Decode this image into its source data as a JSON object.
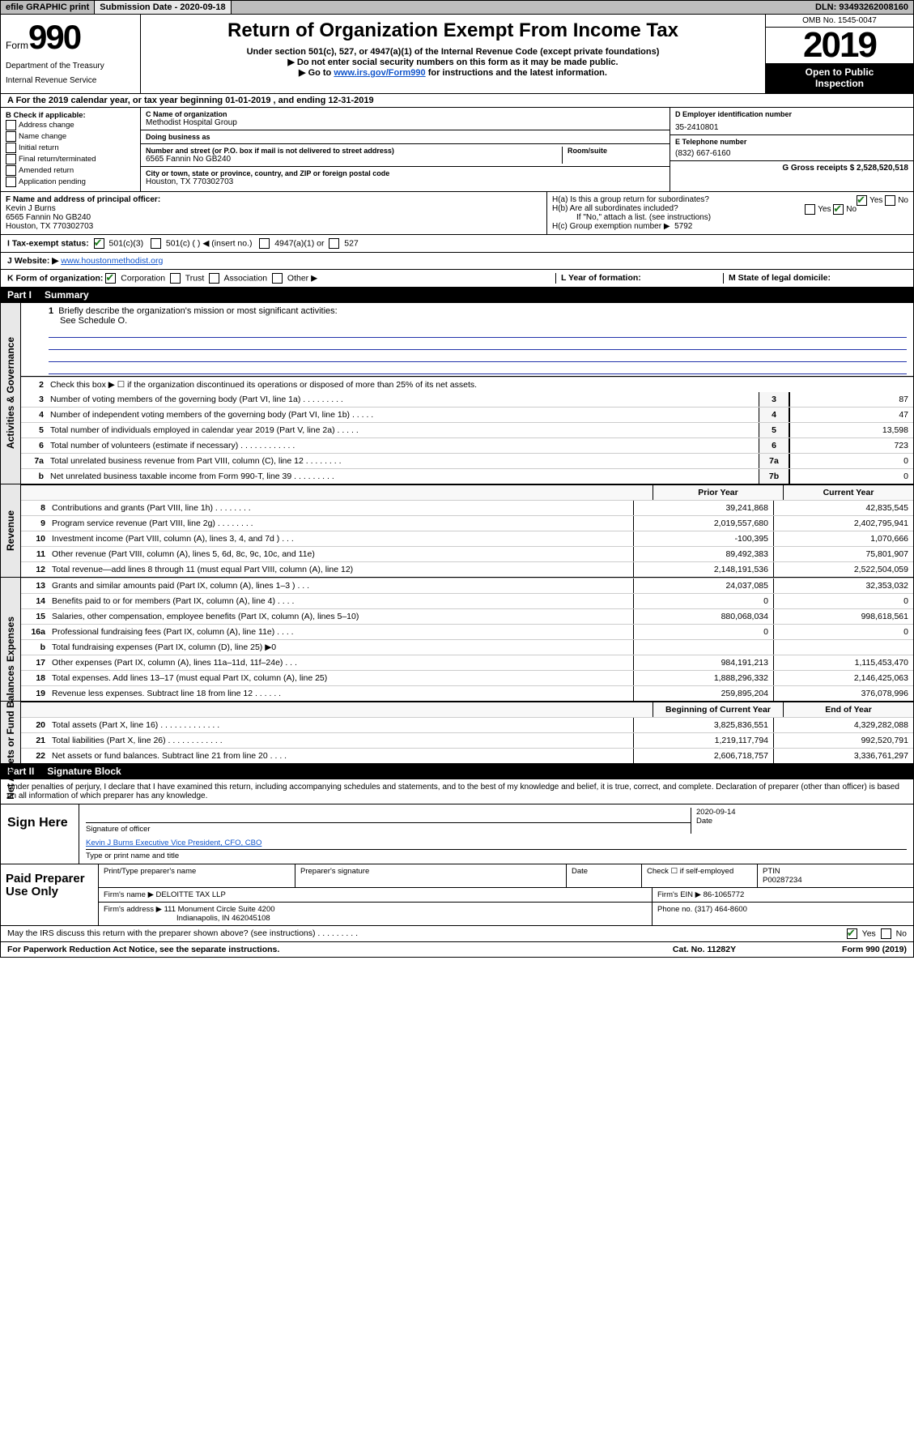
{
  "meta": {
    "efile_label": "efile GRAPHIC print",
    "submission_label": "Submission Date - 2020-09-18",
    "dln_label": "DLN: 93493262008160"
  },
  "header": {
    "form_word": "Form",
    "form_number": "990",
    "title": "Return of Organization Exempt From Income Tax",
    "subtitle": "Under section 501(c), 527, or 4947(a)(1) of the Internal Revenue Code (except private foundations)",
    "warn": "▶ Do not enter social security numbers on this form as it may be made public.",
    "goto_pre": "▶ Go to ",
    "goto_link": "www.irs.gov/Form990",
    "goto_post": " for instructions and the latest information.",
    "dept1": "Department of the Treasury",
    "dept2": "Internal Revenue Service",
    "omb": "OMB No. 1545-0047",
    "year": "2019",
    "open1": "Open to Public",
    "open2": "Inspection"
  },
  "row_a": "A For the 2019 calendar year, or tax year beginning 01-01-2019   , and ending 12-31-2019",
  "col_b": {
    "title": "B Check if applicable:",
    "opts": [
      "Address change",
      "Name change",
      "Initial return",
      "Final return/terminated",
      "Amended return",
      "Application pending"
    ]
  },
  "org": {
    "c_label": "C Name of organization",
    "name": "Methodist Hospital Group",
    "dba_label": "Doing business as",
    "addr_label": "Number and street (or P.O. box if mail is not delivered to street address)",
    "suite_label": "Room/suite",
    "addr": "6565 Fannin No GB240",
    "city_label": "City or town, state or province, country, and ZIP or foreign postal code",
    "city": "Houston, TX  770302703"
  },
  "col_d": {
    "ein_label": "D Employer identification number",
    "ein": "35-2410801",
    "tel_label": "E Telephone number",
    "tel": "(832) 667-6160",
    "gross_label": "G Gross receipts $ 2,528,520,518"
  },
  "below": {
    "f_label": "F  Name and address of principal officer:",
    "officer_name": "Kevin J Burns",
    "officer_addr1": "6565 Fannin No GB240",
    "officer_addr2": "Houston, TX  770302703",
    "ha_label": "H(a)  Is this a group return for subordinates?",
    "hb_label": "H(b)  Are all subordinates included?",
    "hb_note": "If \"No,\" attach a list. (see instructions)",
    "hc_label": "H(c)  Group exemption number ▶",
    "hc_val": "5792",
    "yes": "Yes",
    "no": "No"
  },
  "status": {
    "i_label": "I  Tax-exempt status:",
    "c3": "501(c)(3)",
    "c_other": "501(c) (  ) ◀ (insert no.)",
    "a1": "4947(a)(1) or",
    "s527": "527"
  },
  "website": {
    "j_label": "J  Website: ▶",
    "link": "www.houstonmethodist.org"
  },
  "korg": {
    "k_label": "K Form of organization:",
    "corp": "Corporation",
    "trust": "Trust",
    "assoc": "Association",
    "other": "Other ▶",
    "l_label": "L Year of formation:",
    "m_label": "M State of legal domicile:"
  },
  "part1": {
    "badge": "Part I",
    "title": "Summary",
    "q1": "Briefly describe the organization's mission or most significant activities:",
    "q1a": "See Schedule O.",
    "q2": "Check this box ▶ ☐  if the organization discontinued its operations or disposed of more than 25% of its net assets.",
    "rows_simple": [
      {
        "n": "3",
        "t": "Number of voting members of the governing body (Part VI, line 1a)  .   .   .   .   .   .   .   .   .",
        "box": "3",
        "v": "87"
      },
      {
        "n": "4",
        "t": "Number of independent voting members of the governing body (Part VI, line 1b)  .   .   .   .   .",
        "box": "4",
        "v": "47"
      },
      {
        "n": "5",
        "t": "Total number of individuals employed in calendar year 2019 (Part V, line 2a)  .   .   .   .   .",
        "box": "5",
        "v": "13,598"
      },
      {
        "n": "6",
        "t": "Total number of volunteers (estimate if necessary)  .   .   .   .   .   .   .   .   .   .   .   .",
        "box": "6",
        "v": "723"
      },
      {
        "n": "7a",
        "t": "Total unrelated business revenue from Part VIII, column (C), line 12  .   .   .   .   .   .   .   .",
        "box": "7a",
        "v": "0"
      },
      {
        "n": "b",
        "t": "Net unrelated business taxable income from Form 990-T, line 39  .   .   .   .   .   .   .   .   .",
        "box": "7b",
        "v": "0"
      }
    ],
    "col_prior": "Prior Year",
    "col_current": "Current Year",
    "col_begin": "Beginning of Current Year",
    "col_end": "End of Year"
  },
  "revenue": [
    {
      "n": "8",
      "t": "Contributions and grants (Part VIII, line 1h)  .   .   .   .   .   .   .   .",
      "p": "39,241,868",
      "c": "42,835,545"
    },
    {
      "n": "9",
      "t": "Program service revenue (Part VIII, line 2g)  .   .   .   .   .   .   .   .",
      "p": "2,019,557,680",
      "c": "2,402,795,941"
    },
    {
      "n": "10",
      "t": "Investment income (Part VIII, column (A), lines 3, 4, and 7d )  .   .   .",
      "p": "-100,395",
      "c": "1,070,666"
    },
    {
      "n": "11",
      "t": "Other revenue (Part VIII, column (A), lines 5, 6d, 8c, 9c, 10c, and 11e)",
      "p": "89,492,383",
      "c": "75,801,907"
    },
    {
      "n": "12",
      "t": "Total revenue—add lines 8 through 11 (must equal Part VIII, column (A), line 12)",
      "p": "2,148,191,536",
      "c": "2,522,504,059"
    }
  ],
  "expenses": [
    {
      "n": "13",
      "t": "Grants and similar amounts paid (Part IX, column (A), lines 1–3 )  .   .   .",
      "p": "24,037,085",
      "c": "32,353,032"
    },
    {
      "n": "14",
      "t": "Benefits paid to or for members (Part IX, column (A), line 4)  .   .   .   .",
      "p": "0",
      "c": "0"
    },
    {
      "n": "15",
      "t": "Salaries, other compensation, employee benefits (Part IX, column (A), lines 5–10)",
      "p": "880,068,034",
      "c": "998,618,561"
    },
    {
      "n": "16a",
      "t": "Professional fundraising fees (Part IX, column (A), line 11e)  .   .   .   .",
      "p": "0",
      "c": "0"
    },
    {
      "n": "b",
      "t": "Total fundraising expenses (Part IX, column (D), line 25) ▶0",
      "p": "",
      "c": ""
    },
    {
      "n": "17",
      "t": "Other expenses (Part IX, column (A), lines 11a–11d, 11f–24e)  .   .   .",
      "p": "984,191,213",
      "c": "1,115,453,470"
    },
    {
      "n": "18",
      "t": "Total expenses. Add lines 13–17 (must equal Part IX, column (A), line 25)",
      "p": "1,888,296,332",
      "c": "2,146,425,063"
    },
    {
      "n": "19",
      "t": "Revenue less expenses. Subtract line 18 from line 12  .   .   .   .   .   .",
      "p": "259,895,204",
      "c": "376,078,996"
    }
  ],
  "netassets": [
    {
      "n": "20",
      "t": "Total assets (Part X, line 16)  .   .   .   .   .   .   .   .   .   .   .   .   .",
      "p": "3,825,836,551",
      "c": "4,329,282,088"
    },
    {
      "n": "21",
      "t": "Total liabilities (Part X, line 26)  .   .   .   .   .   .   .   .   .   .   .   .",
      "p": "1,219,117,794",
      "c": "992,520,791"
    },
    {
      "n": "22",
      "t": "Net assets or fund balances. Subtract line 21 from line 20  .   .   .   .",
      "p": "2,606,718,757",
      "c": "3,336,761,297"
    }
  ],
  "vert": {
    "gov": "Activities & Governance",
    "rev": "Revenue",
    "exp": "Expenses",
    "na": "Net Assets or Fund Balances"
  },
  "part2": {
    "badge": "Part II",
    "title": "Signature Block"
  },
  "perjury": "Under penalties of perjury, I declare that I have examined this return, including accompanying schedules and statements, and to the best of my knowledge and belief, it is true, correct, and complete. Declaration of preparer (other than officer) is based on all information of which preparer has any knowledge.",
  "sign": {
    "here": "Sign Here",
    "sig_lbl": "Signature of officer",
    "date_lbl": "Date",
    "date": "2020-09-14",
    "name": "Kevin J Burns  Executive Vice President, CFO, CBO",
    "name_lbl": "Type or print name and title"
  },
  "paid": {
    "title": "Paid Preparer Use Only",
    "h_prep": "Print/Type preparer's name",
    "h_sig": "Preparer's signature",
    "h_date": "Date",
    "h_chk": "Check ☐ if self-employed",
    "h_ptin": "PTIN",
    "ptin": "P00287234",
    "firm_lbl": "Firm's name   ▶",
    "firm": "DELOITTE TAX LLP",
    "ein_lbl": "Firm's EIN ▶",
    "ein": "86-1065772",
    "addr_lbl": "Firm's address ▶",
    "addr1": "111 Monument Circle Suite 4200",
    "addr2": "Indianapolis, IN  462045108",
    "phone_lbl": "Phone no.",
    "phone": "(317) 464-8600"
  },
  "footer": {
    "q": "May the IRS discuss this return with the preparer shown above? (see instructions)  .   .   .   .   .   .   .   .   .",
    "yes": "Yes",
    "no": "No",
    "pra": "For Paperwork Reduction Act Notice, see the separate instructions.",
    "cat": "Cat. No. 11282Y",
    "form": "Form 990 (2019)"
  }
}
